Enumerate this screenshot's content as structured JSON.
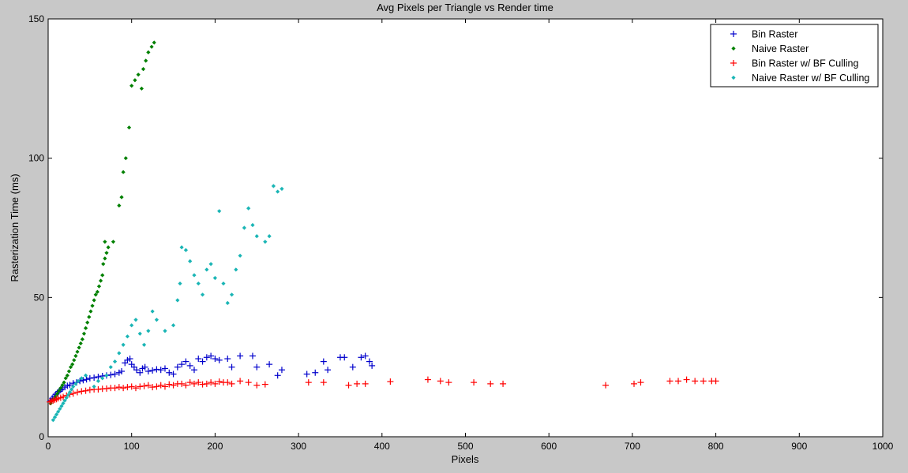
{
  "chart_data": {
    "type": "scatter",
    "title": "Avg Pixels per Triangle vs Render time",
    "xlabel": "Pixels",
    "ylabel": "Rasterization Time (ms)",
    "xlim": [
      0,
      1000
    ],
    "ylim": [
      0,
      150
    ],
    "xticks": [
      "0",
      "100",
      "200",
      "300",
      "400",
      "500",
      "600",
      "700",
      "800",
      "900",
      "1000"
    ],
    "yticks": [
      "0",
      "50",
      "100",
      "150"
    ],
    "legend_position": "top-right",
    "series": [
      {
        "name": "Bin Raster",
        "marker": "plus",
        "color": "#0000cc",
        "points": [
          [
            3,
            13
          ],
          [
            5,
            13.8
          ],
          [
            7,
            14.5
          ],
          [
            9,
            15.2
          ],
          [
            11,
            15.8
          ],
          [
            13,
            16.3
          ],
          [
            15,
            16.8
          ],
          [
            17,
            17.2
          ],
          [
            20,
            17.8
          ],
          [
            23,
            18.3
          ],
          [
            26,
            18.6
          ],
          [
            30,
            19.2
          ],
          [
            34,
            19.5
          ],
          [
            38,
            20
          ],
          [
            42,
            20.3
          ],
          [
            46,
            20.6
          ],
          [
            50,
            21
          ],
          [
            55,
            21.2
          ],
          [
            60,
            21.5
          ],
          [
            65,
            21.8
          ],
          [
            70,
            22
          ],
          [
            75,
            22.2
          ],
          [
            80,
            22.5
          ],
          [
            85,
            23
          ],
          [
            88,
            23.5
          ],
          [
            92,
            26.5
          ],
          [
            95,
            27.5
          ],
          [
            98,
            28
          ],
          [
            100,
            26
          ],
          [
            103,
            25
          ],
          [
            106,
            24
          ],
          [
            110,
            23
          ],
          [
            113,
            24.5
          ],
          [
            116,
            25
          ],
          [
            120,
            23.5
          ],
          [
            125,
            23.8
          ],
          [
            130,
            24.2
          ],
          [
            135,
            24
          ],
          [
            140,
            24.5
          ],
          [
            145,
            23
          ],
          [
            150,
            22.5
          ],
          [
            155,
            25
          ],
          [
            160,
            26
          ],
          [
            165,
            27
          ],
          [
            170,
            25.5
          ],
          [
            175,
            24
          ],
          [
            180,
            28
          ],
          [
            185,
            27
          ],
          [
            190,
            28.5
          ],
          [
            195,
            29
          ],
          [
            200,
            28
          ],
          [
            205,
            27.5
          ],
          [
            215,
            28
          ],
          [
            220,
            25
          ],
          [
            230,
            29
          ],
          [
            245,
            29
          ],
          [
            250,
            25
          ],
          [
            265,
            26
          ],
          [
            275,
            22
          ],
          [
            280,
            24
          ],
          [
            310,
            22.5
          ],
          [
            320,
            23
          ],
          [
            330,
            27
          ],
          [
            335,
            24
          ],
          [
            350,
            28.5
          ],
          [
            355,
            28.5
          ],
          [
            365,
            25
          ],
          [
            375,
            28.5
          ],
          [
            380,
            29
          ],
          [
            385,
            27
          ],
          [
            388,
            25.5
          ]
        ]
      },
      {
        "name": "Naive Raster",
        "marker": "dot",
        "color": "#008000",
        "points": [
          [
            3,
            12
          ],
          [
            5,
            13
          ],
          [
            7,
            13.5
          ],
          [
            9,
            14.5
          ],
          [
            11,
            15.5
          ],
          [
            13,
            16.5
          ],
          [
            15,
            17.5
          ],
          [
            17,
            18.5
          ],
          [
            19,
            19.5
          ],
          [
            21,
            21
          ],
          [
            23,
            22
          ],
          [
            25,
            23.5
          ],
          [
            27,
            25
          ],
          [
            29,
            26
          ],
          [
            31,
            27.5
          ],
          [
            33,
            29
          ],
          [
            35,
            30.5
          ],
          [
            37,
            32
          ],
          [
            39,
            33.5
          ],
          [
            41,
            35
          ],
          [
            43,
            37
          ],
          [
            45,
            39
          ],
          [
            47,
            41
          ],
          [
            49,
            43
          ],
          [
            51,
            45
          ],
          [
            53,
            47
          ],
          [
            55,
            49
          ],
          [
            57,
            51
          ],
          [
            59,
            52
          ],
          [
            61,
            54
          ],
          [
            63,
            56
          ],
          [
            65,
            58
          ],
          [
            66,
            62
          ],
          [
            68,
            64
          ],
          [
            70,
            66
          ],
          [
            68,
            70
          ],
          [
            72,
            68
          ],
          [
            78,
            70
          ],
          [
            85,
            83
          ],
          [
            88,
            86
          ],
          [
            90,
            95
          ],
          [
            93,
            100
          ],
          [
            97,
            111
          ],
          [
            100,
            126
          ],
          [
            104,
            128
          ],
          [
            108,
            130
          ],
          [
            112,
            125
          ],
          [
            114,
            132
          ],
          [
            117,
            135
          ],
          [
            120,
            138
          ],
          [
            124,
            140
          ],
          [
            127,
            141.5
          ]
        ]
      },
      {
        "name": "Bin Raster w/ BF Culling",
        "marker": "plus",
        "color": "#ff0000",
        "points": [
          [
            2,
            12.5
          ],
          [
            4,
            12.8
          ],
          [
            6,
            13
          ],
          [
            8,
            13.3
          ],
          [
            10,
            13.5
          ],
          [
            12,
            13.8
          ],
          [
            15,
            14
          ],
          [
            18,
            14.3
          ],
          [
            22,
            14.8
          ],
          [
            26,
            15.2
          ],
          [
            30,
            15.5
          ],
          [
            35,
            16
          ],
          [
            40,
            16.3
          ],
          [
            45,
            16.5
          ],
          [
            50,
            16.8
          ],
          [
            55,
            17
          ],
          [
            60,
            17
          ],
          [
            65,
            17.2
          ],
          [
            70,
            17.3
          ],
          [
            75,
            17.5
          ],
          [
            80,
            17.5
          ],
          [
            85,
            17.8
          ],
          [
            90,
            17.5
          ],
          [
            95,
            17.8
          ],
          [
            100,
            18
          ],
          [
            105,
            17.5
          ],
          [
            110,
            18
          ],
          [
            115,
            18.2
          ],
          [
            120,
            18.5
          ],
          [
            125,
            17.8
          ],
          [
            130,
            18
          ],
          [
            135,
            18.5
          ],
          [
            140,
            18
          ],
          [
            145,
            18.8
          ],
          [
            150,
            18.5
          ],
          [
            155,
            19
          ],
          [
            160,
            19
          ],
          [
            165,
            18.5
          ],
          [
            170,
            19.5
          ],
          [
            175,
            19
          ],
          [
            180,
            19.5
          ],
          [
            185,
            18.8
          ],
          [
            190,
            19
          ],
          [
            195,
            19.5
          ],
          [
            200,
            19
          ],
          [
            205,
            19.8
          ],
          [
            210,
            19.5
          ],
          [
            215,
            19.5
          ],
          [
            220,
            19
          ],
          [
            230,
            20
          ],
          [
            240,
            19.5
          ],
          [
            250,
            18.5
          ],
          [
            260,
            18.8
          ],
          [
            312,
            19.5
          ],
          [
            330,
            19.5
          ],
          [
            360,
            18.5
          ],
          [
            370,
            19
          ],
          [
            380,
            19
          ],
          [
            410,
            19.8
          ],
          [
            455,
            20.5
          ],
          [
            470,
            20
          ],
          [
            480,
            19.5
          ],
          [
            510,
            19.5
          ],
          [
            530,
            19
          ],
          [
            545,
            19
          ],
          [
            668,
            18.5
          ],
          [
            702,
            19
          ],
          [
            710,
            19.5
          ],
          [
            745,
            20
          ],
          [
            755,
            20
          ],
          [
            765,
            20.5
          ],
          [
            775,
            20
          ],
          [
            785,
            20
          ],
          [
            795,
            20
          ],
          [
            800,
            20
          ]
        ]
      },
      {
        "name": "Naive Raster w/ BF Culling",
        "marker": "dot",
        "color": "#1ab5b5",
        "points": [
          [
            6,
            6
          ],
          [
            8,
            7
          ],
          [
            10,
            8
          ],
          [
            12,
            9
          ],
          [
            14,
            10
          ],
          [
            16,
            11
          ],
          [
            18,
            12
          ],
          [
            20,
            13
          ],
          [
            22,
            14
          ],
          [
            24,
            15
          ],
          [
            26,
            16
          ],
          [
            28,
            17
          ],
          [
            30,
            18
          ],
          [
            33,
            19
          ],
          [
            36,
            20
          ],
          [
            40,
            21
          ],
          [
            45,
            22
          ],
          [
            55,
            18
          ],
          [
            60,
            20
          ],
          [
            65,
            21
          ],
          [
            70,
            22
          ],
          [
            75,
            25
          ],
          [
            80,
            27
          ],
          [
            85,
            30
          ],
          [
            90,
            33
          ],
          [
            95,
            36
          ],
          [
            100,
            40
          ],
          [
            105,
            42
          ],
          [
            110,
            37
          ],
          [
            115,
            33
          ],
          [
            120,
            38
          ],
          [
            125,
            45
          ],
          [
            130,
            42
          ],
          [
            140,
            38
          ],
          [
            150,
            40
          ],
          [
            155,
            49
          ],
          [
            158,
            55
          ],
          [
            160,
            68
          ],
          [
            165,
            67
          ],
          [
            170,
            63
          ],
          [
            175,
            58
          ],
          [
            180,
            55
          ],
          [
            185,
            51
          ],
          [
            190,
            60
          ],
          [
            195,
            62
          ],
          [
            200,
            57
          ],
          [
            205,
            81
          ],
          [
            210,
            55
          ],
          [
            215,
            48
          ],
          [
            220,
            51
          ],
          [
            225,
            60
          ],
          [
            230,
            65
          ],
          [
            235,
            75
          ],
          [
            240,
            82
          ],
          [
            245,
            76
          ],
          [
            250,
            72
          ],
          [
            260,
            70
          ],
          [
            265,
            72
          ],
          [
            270,
            90
          ],
          [
            275,
            88
          ],
          [
            280,
            89
          ]
        ]
      }
    ]
  }
}
